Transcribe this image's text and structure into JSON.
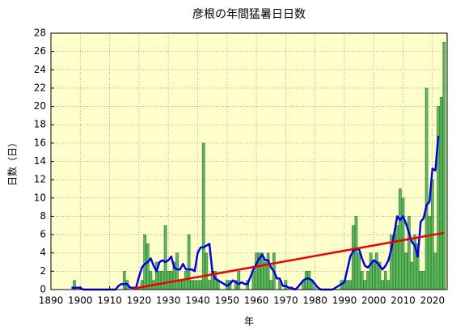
{
  "chart_data": {
    "type": "bar-line",
    "title": "彦根の年間猛暑日日数",
    "x_label": "年",
    "y_label": "日数（日）",
    "xlim": [
      1890,
      2025
    ],
    "xticks": [
      1890,
      1900,
      1910,
      1920,
      1930,
      1940,
      1950,
      1960,
      1970,
      1980,
      1990,
      2000,
      2010,
      2020
    ],
    "ylim": [
      0,
      28
    ],
    "yticks": [
      0,
      2,
      4,
      6,
      8,
      10,
      12,
      14,
      16,
      18,
      20,
      22,
      24,
      26,
      28
    ],
    "grid": true,
    "background": "#ffffcc",
    "x": [
      1895,
      1896,
      1897,
      1898,
      1899,
      1900,
      1901,
      1902,
      1903,
      1904,
      1905,
      1906,
      1907,
      1908,
      1909,
      1910,
      1911,
      1912,
      1913,
      1914,
      1915,
      1916,
      1917,
      1918,
      1919,
      1920,
      1921,
      1922,
      1923,
      1924,
      1925,
      1926,
      1927,
      1928,
      1929,
      1930,
      1931,
      1932,
      1933,
      1934,
      1935,
      1936,
      1937,
      1938,
      1939,
      1940,
      1941,
      1942,
      1943,
      1944,
      1945,
      1946,
      1947,
      1948,
      1949,
      1950,
      1951,
      1952,
      1953,
      1954,
      1955,
      1956,
      1957,
      1958,
      1959,
      1960,
      1961,
      1962,
      1963,
      1964,
      1965,
      1966,
      1967,
      1968,
      1969,
      1970,
      1971,
      1972,
      1973,
      1974,
      1975,
      1976,
      1977,
      1978,
      1979,
      1980,
      1981,
      1982,
      1983,
      1984,
      1985,
      1986,
      1987,
      1988,
      1989,
      1990,
      1991,
      1992,
      1993,
      1994,
      1995,
      1996,
      1997,
      1998,
      1999,
      2000,
      2001,
      2002,
      2003,
      2004,
      2005,
      2006,
      2007,
      2008,
      2009,
      2010,
      2011,
      2012,
      2013,
      2014,
      2015,
      2016,
      2017,
      2018,
      2019,
      2020,
      2021,
      2022,
      2023,
      2024
    ],
    "series": [
      {
        "kind": "bar",
        "color": "#5cb85c",
        "values": [
          0,
          0,
          0,
          1,
          0,
          0,
          0,
          0,
          0,
          0,
          0,
          0,
          0,
          0,
          0,
          0,
          0,
          0,
          0,
          0,
          2,
          1,
          0,
          0,
          0,
          0,
          1,
          6,
          5,
          2,
          1,
          3,
          2,
          2,
          7,
          2,
          2,
          3,
          4,
          1,
          1,
          2,
          6,
          1,
          1,
          1,
          1,
          16,
          4,
          1,
          2,
          2,
          1,
          0,
          0,
          1,
          1,
          0,
          1,
          2,
          0,
          0,
          1,
          0,
          2,
          4,
          4,
          4,
          3,
          4,
          1,
          4,
          0,
          1,
          0,
          1,
          0,
          0,
          0,
          0,
          0,
          1,
          2,
          2,
          1,
          0,
          0,
          0,
          0,
          0,
          0,
          0,
          0,
          0,
          1,
          1,
          1,
          1,
          7,
          8,
          4,
          2,
          1,
          2,
          4,
          3,
          4,
          3,
          1,
          2,
          1,
          6,
          6,
          7,
          11,
          10,
          4,
          8,
          3,
          6,
          5,
          2,
          2,
          22,
          8,
          12,
          4,
          20,
          21,
          27
        ]
      },
      {
        "kind": "line",
        "color": "#0000ee",
        "values": [
          null,
          null,
          0.2,
          0.2,
          0.2,
          0.2,
          0,
          0,
          0,
          0,
          0,
          0,
          0,
          0,
          0,
          0,
          0,
          0,
          0.4,
          0.6,
          0.6,
          0.6,
          0.2,
          0.2,
          0.2,
          1.4,
          2.4,
          2.8,
          3.0,
          3.4,
          2.6,
          2.0,
          3.0,
          3.2,
          3.0,
          3.2,
          3.6,
          2.4,
          2.2,
          2.2,
          2.8,
          2.2,
          2.2,
          2.2,
          2.0,
          4.0,
          4.6,
          4.6,
          4.8,
          5.0,
          2.0,
          1.2,
          1.0,
          0.8,
          0.6,
          0.4,
          0.6,
          1.0,
          0.8,
          0.6,
          0.8,
          0.6,
          0.6,
          1.4,
          2.2,
          2.8,
          3.4,
          3.8,
          3.2,
          3.2,
          2.4,
          2.0,
          1.2,
          1.2,
          0.4,
          0.4,
          0.2,
          0.2,
          0,
          0.2,
          0.6,
          1.0,
          1.2,
          1.2,
          1.0,
          0.6,
          0.2,
          0,
          0,
          0,
          0,
          0,
          0.2,
          0.4,
          0.6,
          0.8,
          2.2,
          3.6,
          4.2,
          4.4,
          4.4,
          3.4,
          2.6,
          2.4,
          2.8,
          3.2,
          3.0,
          2.6,
          2.2,
          2.6,
          3.2,
          4.4,
          6.2,
          8.0,
          7.6,
          8.0,
          7.2,
          6.2,
          5.2,
          4.8,
          3.6,
          7.4,
          7.8,
          9.2,
          9.6,
          13.2,
          13.0,
          16.8,
          null,
          null
        ]
      }
    ],
    "trend": {
      "color": "#ee0000",
      "x": [
        1918,
        2024
      ],
      "values": [
        0.1,
        6.2
      ]
    }
  }
}
